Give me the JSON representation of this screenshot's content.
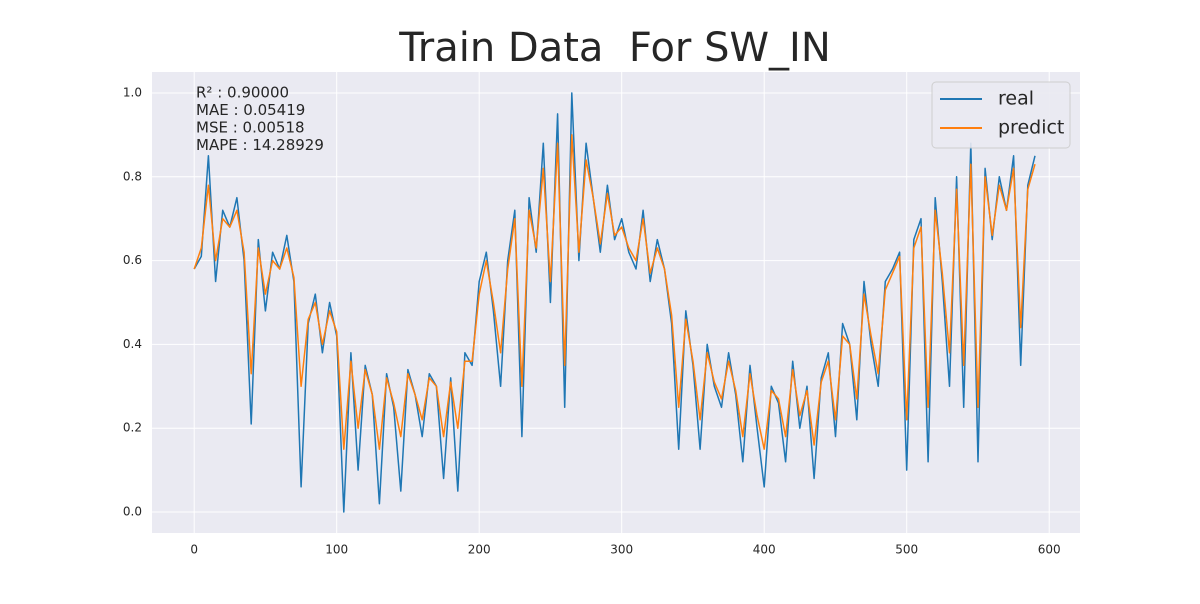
{
  "chart_data": {
    "type": "line",
    "title": "Train Data  For SW_IN",
    "annotations": [
      "R² : 0.90000",
      "MAE : 0.05419",
      "MSE : 0.00518",
      "MAPE : 14.28929"
    ],
    "x": [
      0,
      5,
      10,
      15,
      20,
      25,
      30,
      35,
      40,
      45,
      50,
      55,
      60,
      65,
      70,
      75,
      80,
      85,
      90,
      95,
      100,
      105,
      110,
      115,
      120,
      125,
      130,
      135,
      140,
      145,
      150,
      155,
      160,
      165,
      170,
      175,
      180,
      185,
      190,
      195,
      200,
      205,
      210,
      215,
      220,
      225,
      230,
      235,
      240,
      245,
      250,
      255,
      260,
      265,
      270,
      275,
      280,
      285,
      290,
      295,
      300,
      305,
      310,
      315,
      320,
      325,
      330,
      335,
      340,
      345,
      350,
      355,
      360,
      365,
      370,
      375,
      380,
      385,
      390,
      395,
      400,
      405,
      410,
      415,
      420,
      425,
      430,
      435,
      440,
      445,
      450,
      455,
      460,
      465,
      470,
      475,
      480,
      485,
      490,
      495,
      500,
      505,
      510,
      515,
      520,
      525,
      530,
      535,
      540,
      545,
      550,
      555,
      560,
      565,
      570,
      575,
      580,
      585,
      590
    ],
    "series": [
      {
        "name": "real",
        "color": "#1f77b4",
        "values": [
          0.58,
          0.61,
          0.85,
          0.55,
          0.72,
          0.68,
          0.75,
          0.6,
          0.21,
          0.65,
          0.48,
          0.62,
          0.58,
          0.66,
          0.55,
          0.06,
          0.45,
          0.52,
          0.38,
          0.5,
          0.42,
          0.0,
          0.38,
          0.1,
          0.35,
          0.28,
          0.02,
          0.33,
          0.25,
          0.05,
          0.34,
          0.28,
          0.18,
          0.33,
          0.3,
          0.08,
          0.32,
          0.05,
          0.38,
          0.35,
          0.55,
          0.62,
          0.48,
          0.3,
          0.6,
          0.72,
          0.18,
          0.75,
          0.62,
          0.88,
          0.5,
          0.95,
          0.25,
          1.0,
          0.6,
          0.88,
          0.75,
          0.62,
          0.78,
          0.65,
          0.7,
          0.62,
          0.58,
          0.72,
          0.55,
          0.65,
          0.58,
          0.45,
          0.15,
          0.48,
          0.35,
          0.15,
          0.4,
          0.3,
          0.25,
          0.38,
          0.28,
          0.12,
          0.35,
          0.2,
          0.06,
          0.3,
          0.26,
          0.12,
          0.36,
          0.2,
          0.3,
          0.08,
          0.32,
          0.38,
          0.18,
          0.45,
          0.4,
          0.22,
          0.55,
          0.4,
          0.3,
          0.55,
          0.58,
          0.62,
          0.1,
          0.65,
          0.7,
          0.12,
          0.75,
          0.55,
          0.3,
          0.8,
          0.25,
          0.88,
          0.12,
          0.82,
          0.65,
          0.8,
          0.72,
          0.85,
          0.35,
          0.78,
          0.85
        ]
      },
      {
        "name": "predict",
        "color": "#ff7f0e",
        "values": [
          0.58,
          0.63,
          0.78,
          0.6,
          0.7,
          0.68,
          0.72,
          0.62,
          0.33,
          0.63,
          0.52,
          0.6,
          0.58,
          0.63,
          0.56,
          0.3,
          0.46,
          0.5,
          0.4,
          0.48,
          0.43,
          0.15,
          0.36,
          0.2,
          0.34,
          0.28,
          0.15,
          0.32,
          0.26,
          0.18,
          0.33,
          0.28,
          0.22,
          0.32,
          0.3,
          0.18,
          0.31,
          0.2,
          0.36,
          0.36,
          0.52,
          0.6,
          0.5,
          0.38,
          0.58,
          0.7,
          0.3,
          0.72,
          0.63,
          0.82,
          0.55,
          0.88,
          0.35,
          0.9,
          0.62,
          0.84,
          0.75,
          0.64,
          0.76,
          0.66,
          0.68,
          0.63,
          0.6,
          0.7,
          0.57,
          0.63,
          0.58,
          0.47,
          0.25,
          0.46,
          0.36,
          0.22,
          0.38,
          0.31,
          0.27,
          0.36,
          0.29,
          0.18,
          0.33,
          0.23,
          0.15,
          0.29,
          0.27,
          0.18,
          0.34,
          0.23,
          0.29,
          0.16,
          0.31,
          0.36,
          0.22,
          0.42,
          0.4,
          0.27,
          0.52,
          0.42,
          0.33,
          0.53,
          0.57,
          0.61,
          0.22,
          0.63,
          0.68,
          0.25,
          0.72,
          0.57,
          0.38,
          0.77,
          0.35,
          0.83,
          0.25,
          0.8,
          0.66,
          0.78,
          0.72,
          0.82,
          0.44,
          0.77,
          0.83
        ]
      }
    ],
    "xlim": [
      -29.6,
      621.6
    ],
    "ylim": [
      -0.05,
      1.05
    ],
    "xticks": [
      0,
      100,
      200,
      300,
      400,
      500,
      600
    ],
    "yticks": [
      {
        "value": 0,
        "label": "0.0"
      },
      0.2,
      0.4,
      0.6,
      0.8,
      {
        "value": 1,
        "label": "1.0"
      }
    ],
    "grid": true,
    "legend": "upper right"
  }
}
